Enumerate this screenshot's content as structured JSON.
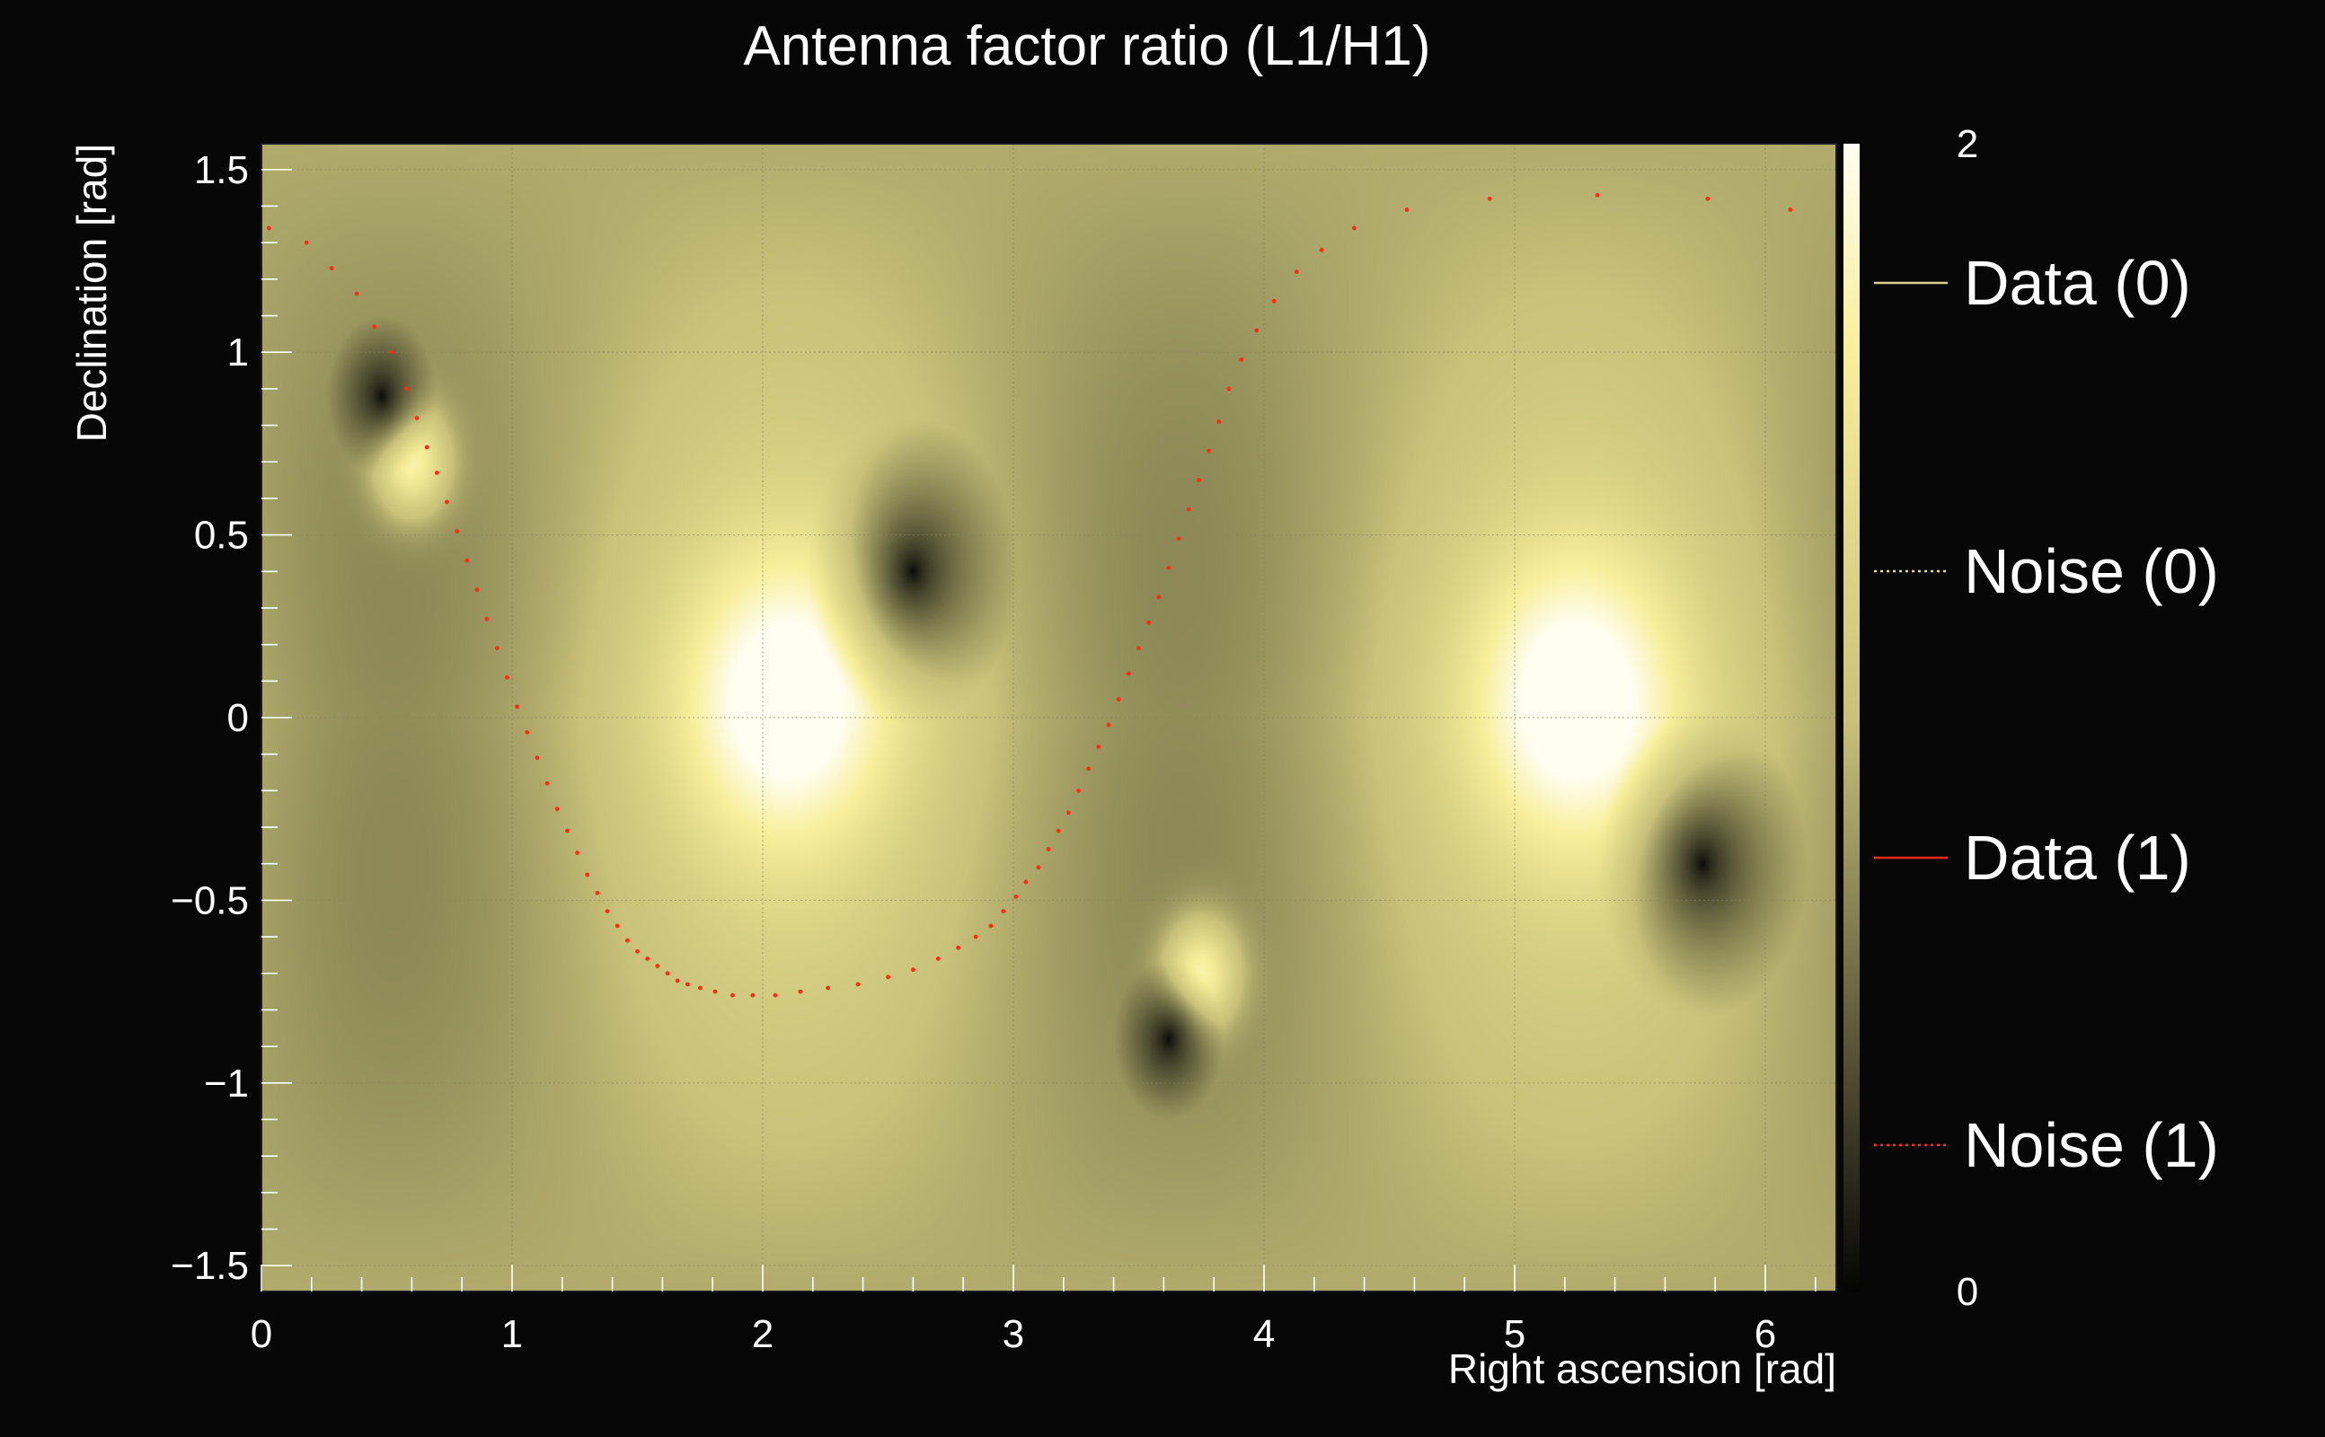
{
  "chart_data": {
    "type": "heatmap",
    "title": "Antenna factor ratio (L1/H1)",
    "xlabel": "Right ascension [rad]",
    "ylabel": "Declination [rad]",
    "xlim": [
      0,
      6.2832
    ],
    "ylim": [
      -1.5708,
      1.5708
    ],
    "x_ticks": [
      {
        "value": 0,
        "label": "0"
      },
      {
        "value": 1,
        "label": "1"
      },
      {
        "value": 2,
        "label": "2"
      },
      {
        "value": 3,
        "label": "3"
      },
      {
        "value": 4,
        "label": "4"
      },
      {
        "value": 5,
        "label": "5"
      },
      {
        "value": 6,
        "label": "6"
      }
    ],
    "y_ticks": [
      {
        "value": 1.5,
        "label": "1.5"
      },
      {
        "value": 1,
        "label": "1"
      },
      {
        "value": 0.5,
        "label": "0.5"
      },
      {
        "value": 0,
        "label": "0"
      },
      {
        "value": -0.5,
        "label": "−0.5"
      },
      {
        "value": -1,
        "label": "−1"
      },
      {
        "value": -1.5,
        "label": "−1.5"
      }
    ],
    "grid": true,
    "colorbar": {
      "range": [
        0,
        2
      ],
      "tick_labels": [
        {
          "value": 2,
          "label": "2"
        },
        {
          "value": 0,
          "label": "0"
        }
      ],
      "colors": [
        "#050505",
        "#c8c27a",
        "#f7ef9a",
        "#fffdf0"
      ]
    },
    "field_features": {
      "baseline": 1.0,
      "peaks": [
        {
          "ra": 2.1,
          "dec": 0.05,
          "value": 2.0
        },
        {
          "ra": 5.25,
          "dec": 0.05,
          "value": 2.0
        },
        {
          "ra": 0.6,
          "dec": 0.7,
          "value": 2.0
        },
        {
          "ra": 3.75,
          "dec": -0.7,
          "value": 2.0
        }
      ],
      "zeros": [
        {
          "ra": 0.48,
          "dec": 0.88
        },
        {
          "ra": 2.6,
          "dec": 0.4
        },
        {
          "ra": 3.62,
          "dec": -0.88
        },
        {
          "ra": 5.75,
          "dec": -0.4
        }
      ]
    },
    "legend": {
      "placement": "right",
      "entries": [
        {
          "label": "Data (0)",
          "color": "#d8d28a",
          "style": "solid"
        },
        {
          "label": "Noise (0)",
          "color": "#e8e070",
          "style": "dotted"
        },
        {
          "label": "Data (1)",
          "color": "#ff2a1a",
          "style": "solid"
        },
        {
          "label": "Noise (1)",
          "color": "#ff2a1a",
          "style": "dotted"
        }
      ]
    },
    "series": [
      {
        "style": "dotted",
        "color": "#ff2a1a",
        "x": [
          0.03,
          0.18,
          0.28,
          0.38,
          0.45,
          0.52,
          0.58,
          0.62,
          0.66,
          0.7,
          0.74,
          0.78,
          0.82,
          0.86,
          0.9,
          0.94,
          0.98,
          1.02,
          1.06,
          1.1,
          1.14,
          1.18,
          1.22,
          1.26,
          1.3,
          1.34,
          1.38,
          1.42,
          1.46,
          1.5,
          1.54,
          1.58,
          1.62,
          1.66,
          1.7,
          1.75,
          1.81,
          1.88,
          1.96,
          2.05,
          2.15,
          2.26,
          2.38,
          2.5,
          2.6,
          2.7,
          2.78,
          2.85,
          2.91,
          2.96,
          3.01,
          3.05,
          3.1,
          3.14,
          3.18,
          3.22,
          3.26,
          3.3,
          3.34,
          3.38,
          3.42,
          3.46,
          3.5,
          3.54,
          3.58,
          3.62,
          3.66,
          3.7,
          3.74,
          3.78,
          3.82,
          3.86,
          3.91,
          3.97,
          4.04,
          4.13,
          4.23,
          4.36,
          4.57,
          4.9,
          5.33,
          5.77,
          6.1
        ],
        "y": [
          1.34,
          1.3,
          1.23,
          1.16,
          1.07,
          1.0,
          0.9,
          0.82,
          0.74,
          0.67,
          0.59,
          0.51,
          0.43,
          0.35,
          0.27,
          0.19,
          0.11,
          0.03,
          -0.04,
          -0.11,
          -0.18,
          -0.25,
          -0.31,
          -0.37,
          -0.43,
          -0.48,
          -0.53,
          -0.57,
          -0.61,
          -0.64,
          -0.66,
          -0.68,
          -0.7,
          -0.72,
          -0.73,
          -0.74,
          -0.75,
          -0.76,
          -0.76,
          -0.76,
          -0.75,
          -0.74,
          -0.73,
          -0.71,
          -0.69,
          -0.66,
          -0.63,
          -0.6,
          -0.57,
          -0.53,
          -0.49,
          -0.45,
          -0.41,
          -0.36,
          -0.31,
          -0.26,
          -0.2,
          -0.14,
          -0.08,
          -0.02,
          0.05,
          0.12,
          0.19,
          0.26,
          0.33,
          0.41,
          0.49,
          0.57,
          0.65,
          0.73,
          0.81,
          0.9,
          0.98,
          1.06,
          1.14,
          1.22,
          1.28,
          1.34,
          1.39,
          1.42,
          1.43,
          1.42,
          1.39
        ]
      }
    ]
  }
}
